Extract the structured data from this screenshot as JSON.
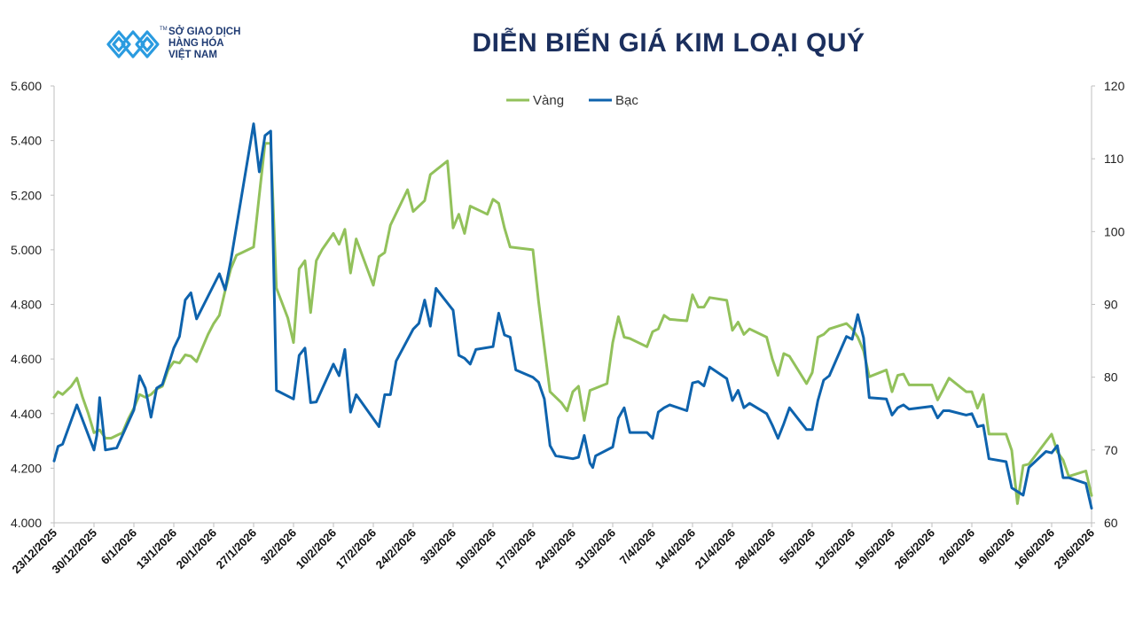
{
  "header": {
    "title": "DIỄN BIẾN GIÁ KIM LOẠI QUÝ",
    "logo_lines": [
      "SỞ GIAO DỊCH",
      "HÀNG HÓA",
      "VIỆT NAM"
    ],
    "logo_mark": "TM"
  },
  "colors": {
    "gold": "#92c15b",
    "silver": "#0e63ad",
    "axis": "#bfbfbf"
  },
  "chart_data": {
    "type": "line",
    "title": "DIỄN BIẾN GIÁ KIM LOẠI QUÝ",
    "x_tick_labels": [
      "23/12/2025",
      "30/12/2025",
      "6/1/2026",
      "13/1/2026",
      "20/1/2026",
      "27/1/2026",
      "3/2/2026",
      "10/2/2026",
      "17/2/2026",
      "24/2/2026",
      "3/3/2026",
      "10/3/2026",
      "17/3/2026",
      "24/3/2026",
      "31/3/2026",
      "7/4/2026",
      "14/4/2026",
      "21/4/2026",
      "28/4/2026",
      "5/5/2026",
      "12/5/2026",
      "19/5/2026",
      "26/5/2026",
      "2/6/2026",
      "9/6/2026",
      "16/6/2026",
      "23/6/2026"
    ],
    "x_range": [
      0,
      182
    ],
    "y_left": {
      "min": 4000,
      "max": 5600,
      "step": 200,
      "tick_labels": [
        "4.000",
        "4.200",
        "4.400",
        "4.600",
        "4.800",
        "5.000",
        "5.200",
        "5.400",
        "5.600"
      ]
    },
    "y_right": {
      "min": 60,
      "max": 120,
      "step": 10,
      "tick_labels": [
        "60",
        "70",
        "80",
        "90",
        "100",
        "110",
        "120"
      ]
    },
    "grid": false,
    "legend_position": "top-center",
    "series": [
      {
        "name": "Vàng",
        "axis": "left",
        "points": [
          [
            0,
            4460
          ],
          [
            0.7,
            4480
          ],
          [
            1.5,
            4470
          ],
          [
            3,
            4500
          ],
          [
            4,
            4530
          ],
          [
            5,
            4460
          ],
          [
            6,
            4400
          ],
          [
            7,
            4330
          ],
          [
            8,
            4340
          ],
          [
            9,
            4310
          ],
          [
            10,
            4310
          ],
          [
            11,
            4320
          ],
          [
            12,
            4330
          ],
          [
            13,
            4380
          ],
          [
            14,
            4420
          ],
          [
            15,
            4470
          ],
          [
            16,
            4460
          ],
          [
            17,
            4470
          ],
          [
            18,
            4490
          ],
          [
            19,
            4500
          ],
          [
            20,
            4560
          ],
          [
            21,
            4590
          ],
          [
            22,
            4585
          ],
          [
            23,
            4615
          ],
          [
            24,
            4610
          ],
          [
            25,
            4590
          ],
          [
            26,
            4640
          ],
          [
            27,
            4690
          ],
          [
            28,
            4730
          ],
          [
            29,
            4760
          ],
          [
            30,
            4850
          ],
          [
            31,
            4930
          ],
          [
            32,
            4980
          ],
          [
            33,
            4990
          ],
          [
            34,
            5000
          ],
          [
            35,
            5010
          ],
          [
            36,
            5200
          ],
          [
            37,
            5390
          ],
          [
            38,
            5390
          ],
          [
            39,
            4860
          ],
          [
            41,
            4750
          ],
          [
            42,
            4660
          ],
          [
            43,
            4930
          ],
          [
            44,
            4960
          ],
          [
            45,
            4770
          ],
          [
            46,
            4960
          ],
          [
            47,
            5000
          ],
          [
            49,
            5060
          ],
          [
            50,
            5020
          ],
          [
            51,
            5075
          ],
          [
            52,
            4915
          ],
          [
            53,
            5040
          ],
          [
            56,
            4870
          ],
          [
            57,
            4975
          ],
          [
            58,
            4990
          ],
          [
            59,
            5090
          ],
          [
            62,
            5220
          ],
          [
            63,
            5140
          ],
          [
            65,
            5180
          ],
          [
            66,
            5275
          ],
          [
            69,
            5325
          ],
          [
            70,
            5080
          ],
          [
            71,
            5130
          ],
          [
            72,
            5060
          ],
          [
            73,
            5160
          ],
          [
            75,
            5140
          ],
          [
            76,
            5130
          ],
          [
            77,
            5185
          ],
          [
            78,
            5170
          ],
          [
            79,
            5080
          ],
          [
            80,
            5010
          ],
          [
            84,
            5000
          ],
          [
            85,
            4810
          ],
          [
            87,
            4480
          ],
          [
            89,
            4440
          ],
          [
            90,
            4410
          ],
          [
            91,
            4480
          ],
          [
            92,
            4500
          ],
          [
            93,
            4375
          ],
          [
            94,
            4485
          ],
          [
            97,
            4510
          ],
          [
            98,
            4660
          ],
          [
            99,
            4755
          ],
          [
            100,
            4680
          ],
          [
            101,
            4675
          ],
          [
            104,
            4645
          ],
          [
            105,
            4700
          ],
          [
            106,
            4710
          ],
          [
            107,
            4760
          ],
          [
            108,
            4745
          ],
          [
            111,
            4740
          ],
          [
            112,
            4835
          ],
          [
            113,
            4790
          ],
          [
            114,
            4790
          ],
          [
            115,
            4825
          ],
          [
            118,
            4815
          ],
          [
            119,
            4705
          ],
          [
            120,
            4735
          ],
          [
            121,
            4690
          ],
          [
            122,
            4710
          ],
          [
            125,
            4680
          ],
          [
            126,
            4600
          ],
          [
            127,
            4540
          ],
          [
            128,
            4620
          ],
          [
            129,
            4610
          ],
          [
            132,
            4510
          ],
          [
            133,
            4550
          ],
          [
            134,
            4680
          ],
          [
            135,
            4690
          ],
          [
            136,
            4710
          ],
          [
            139,
            4730
          ],
          [
            140,
            4710
          ],
          [
            141,
            4680
          ],
          [
            142,
            4630
          ],
          [
            143,
            4535
          ],
          [
            146,
            4560
          ],
          [
            147,
            4480
          ],
          [
            148,
            4540
          ],
          [
            149,
            4545
          ],
          [
            150,
            4505
          ],
          [
            154,
            4505
          ],
          [
            155,
            4450
          ],
          [
            156,
            4490
          ],
          [
            157,
            4530
          ],
          [
            160,
            4480
          ],
          [
            161,
            4480
          ],
          [
            162,
            4420
          ],
          [
            163,
            4470
          ],
          [
            164,
            4325
          ],
          [
            167,
            4325
          ],
          [
            168,
            4265
          ],
          [
            169,
            4070
          ],
          [
            170,
            4210
          ],
          [
            171,
            4215
          ],
          [
            175,
            4325
          ],
          [
            176,
            4260
          ],
          [
            177,
            4230
          ],
          [
            178,
            4170
          ],
          [
            181,
            4190
          ],
          [
            182,
            4100
          ]
        ]
      },
      {
        "name": "Bạc",
        "axis": "right",
        "points": [
          [
            0,
            68.5
          ],
          [
            0.7,
            70.5
          ],
          [
            1.5,
            70.8
          ],
          [
            4,
            76.2
          ],
          [
            7,
            70
          ],
          [
            7.5,
            72
          ],
          [
            8,
            77.2
          ],
          [
            9,
            70
          ],
          [
            11,
            70.3
          ],
          [
            14,
            75.5
          ],
          [
            15,
            80.2
          ],
          [
            16,
            78.5
          ],
          [
            17,
            74.5
          ],
          [
            18,
            78.5
          ],
          [
            19,
            79
          ],
          [
            21,
            84
          ],
          [
            22,
            85.6
          ],
          [
            23,
            90.6
          ],
          [
            24,
            91.6
          ],
          [
            25,
            88
          ],
          [
            29,
            94.2
          ],
          [
            30,
            92
          ],
          [
            31,
            96
          ],
          [
            35,
            114.8
          ],
          [
            36,
            108.2
          ],
          [
            37,
            113.2
          ],
          [
            38,
            113.8
          ],
          [
            39,
            78.2
          ],
          [
            42,
            77
          ],
          [
            43,
            83
          ],
          [
            44,
            84
          ],
          [
            45,
            76.5
          ],
          [
            46,
            76.6
          ],
          [
            49,
            81.8
          ],
          [
            50,
            80.2
          ],
          [
            51,
            83.8
          ],
          [
            52,
            75.2
          ],
          [
            53,
            77.6
          ],
          [
            57,
            73.2
          ],
          [
            58,
            77.6
          ],
          [
            59,
            77.6
          ],
          [
            60,
            82.2
          ],
          [
            63,
            86.6
          ],
          [
            64,
            87.4
          ],
          [
            65,
            90.6
          ],
          [
            66,
            87
          ],
          [
            67,
            92.2
          ],
          [
            70,
            89.2
          ],
          [
            71,
            83
          ],
          [
            72,
            82.6
          ],
          [
            73,
            81.8
          ],
          [
            74,
            83.8
          ],
          [
            77,
            84.2
          ],
          [
            78,
            88.8
          ],
          [
            79,
            85.8
          ],
          [
            80,
            85.5
          ],
          [
            81,
            81
          ],
          [
            84,
            80
          ],
          [
            85,
            79.3
          ],
          [
            86,
            77
          ],
          [
            87,
            70.6
          ],
          [
            88,
            69.2
          ],
          [
            91,
            68.8
          ],
          [
            92,
            69
          ],
          [
            93,
            72
          ],
          [
            94,
            68.2
          ],
          [
            94.5,
            67.6
          ],
          [
            95,
            69.2
          ],
          [
            98,
            70.4
          ],
          [
            99,
            74.4
          ],
          [
            100,
            75.8
          ],
          [
            101,
            72.4
          ],
          [
            104,
            72.4
          ],
          [
            105,
            71.6
          ],
          [
            106,
            75.2
          ],
          [
            107,
            75.8
          ],
          [
            108,
            76.2
          ],
          [
            111,
            75.4
          ],
          [
            112,
            79.2
          ],
          [
            113,
            79.4
          ],
          [
            114,
            78.8
          ],
          [
            115,
            81.4
          ],
          [
            118,
            79.8
          ],
          [
            119,
            76.8
          ],
          [
            120,
            78.2
          ],
          [
            121,
            75.8
          ],
          [
            122,
            76.4
          ],
          [
            125,
            75
          ],
          [
            126,
            73.4
          ],
          [
            127,
            71.6
          ],
          [
            128,
            73.6
          ],
          [
            129,
            75.8
          ],
          [
            132,
            72.8
          ],
          [
            133,
            72.8
          ],
          [
            134,
            76.8
          ],
          [
            135,
            79.6
          ],
          [
            136,
            80.2
          ],
          [
            139,
            85.6
          ],
          [
            140,
            85.2
          ],
          [
            141,
            88.6
          ],
          [
            142,
            85.4
          ],
          [
            143,
            77.2
          ],
          [
            146,
            77
          ],
          [
            147,
            74.8
          ],
          [
            148,
            75.8
          ],
          [
            149,
            76.2
          ],
          [
            150,
            75.6
          ],
          [
            154,
            76
          ],
          [
            155,
            74.4
          ],
          [
            156,
            75.4
          ],
          [
            157,
            75.4
          ],
          [
            160,
            74.8
          ],
          [
            161,
            75
          ],
          [
            162,
            73.2
          ],
          [
            163,
            73.4
          ],
          [
            164,
            68.8
          ],
          [
            167,
            68.4
          ],
          [
            168,
            64.8
          ],
          [
            170,
            63.8
          ],
          [
            171,
            67.6
          ],
          [
            174,
            69.8
          ],
          [
            175,
            69.6
          ],
          [
            176,
            70.6
          ],
          [
            177,
            66.2
          ],
          [
            178,
            66.2
          ],
          [
            181,
            65.4
          ],
          [
            182,
            62
          ]
        ]
      }
    ]
  }
}
